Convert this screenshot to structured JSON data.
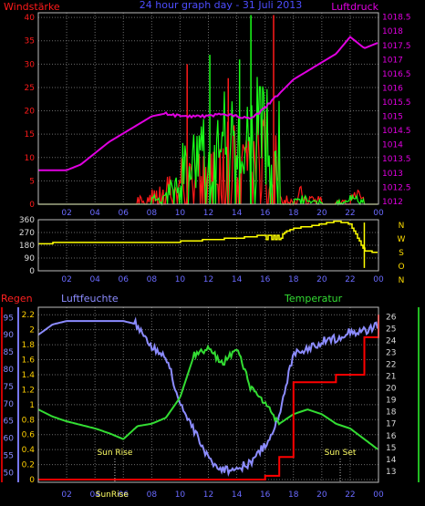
{
  "title": "24 hour graph day - 31 Juli 2013",
  "colors": {
    "background": "#000000",
    "wind": "#ff1a1a",
    "gust": "#1aff1a",
    "pressure": "#e000e0",
    "direction": "#ffff00",
    "rain": "#ff0000",
    "humidity": "#8c8cff",
    "temperature": "#33dd33",
    "blue_text": "#4d4dff",
    "time_text": "#6a6aff"
  },
  "chart_data": [
    {
      "type": "line",
      "name": "wind-pressure",
      "title": "24 hour graph day - 31 Juli 2013",
      "ylabel_left": "Windstärke",
      "ylabel_right": "Luftdruck",
      "x_ticks": [
        "02",
        "04",
        "06",
        "08",
        "10",
        "12",
        "14",
        "16",
        "18",
        "20",
        "22",
        "00"
      ],
      "y_left_ticks": [
        "0",
        "5",
        "10",
        "15",
        "20",
        "25",
        "30",
        "35",
        "40"
      ],
      "y_right_ticks": [
        "1012",
        "1012.5",
        "1013",
        "1013.5",
        "1014",
        "1014.5",
        "1015",
        "1015.5",
        "1016",
        "1016.5",
        "1017",
        "1017.5",
        "1018",
        "1018.5"
      ],
      "ylim_left": [
        0,
        41
      ],
      "ylim_right": [
        1011.9,
        1018.65
      ],
      "x_hours": [
        0,
        1,
        2,
        3,
        4,
        5,
        6,
        7,
        8,
        9,
        10,
        11,
        12,
        13,
        14,
        15,
        16,
        17,
        18,
        19,
        20,
        21,
        22,
        23,
        24
      ],
      "pressure": [
        1013.1,
        1013.1,
        1013.1,
        1013.3,
        1013.7,
        1014.1,
        1014.4,
        1014.7,
        1015.0,
        1015.1,
        1015.0,
        1015.0,
        1015.0,
        1015.1,
        1015.0,
        1014.9,
        1015.3,
        1015.8,
        1016.3,
        1016.6,
        1016.9,
        1017.2,
        1017.8,
        1017.4,
        1017.6
      ],
      "series": [
        {
          "name": "gust",
          "max_level": [
            0,
            0,
            0,
            0,
            0,
            0,
            0,
            0,
            2,
            6,
            15,
            20,
            22,
            25,
            22,
            30,
            25,
            0,
            2,
            1,
            0,
            1,
            2,
            0
          ]
        },
        {
          "name": "wind",
          "max_level": [
            0,
            0,
            0,
            0,
            0,
            0,
            0,
            2,
            4,
            6,
            10,
            12,
            14,
            18,
            14,
            20,
            16,
            2,
            4,
            2,
            0,
            1,
            3,
            0
          ]
        }
      ]
    },
    {
      "type": "line",
      "name": "wind-direction",
      "ylabel_right": [
        "N",
        "W",
        "S",
        "O",
        "N"
      ],
      "y_ticks": [
        "0",
        "90",
        "180",
        "270",
        "360"
      ],
      "ylim": [
        0,
        360
      ],
      "x_ticks": [
        "02",
        "04",
        "06",
        "08",
        "10",
        "12",
        "14",
        "16",
        "18",
        "20",
        "22",
        "00"
      ],
      "x_hours": [
        0,
        1,
        2,
        3,
        4,
        5,
        6,
        7,
        8,
        9,
        10,
        11,
        12,
        13,
        14,
        15,
        16,
        17,
        18,
        19,
        20,
        21,
        22,
        23,
        24
      ],
      "values": [
        190,
        195,
        198,
        200,
        200,
        201,
        203,
        200,
        198,
        200,
        205,
        210,
        220,
        225,
        230,
        240,
        255,
        250,
        300,
        310,
        330,
        350,
        330,
        140,
        130
      ]
    },
    {
      "type": "line",
      "name": "rain-humidity-temperature",
      "labels": {
        "rain": "Regen",
        "humidity": "Luftfeuchte",
        "temperature": "Temperatur"
      },
      "rain_ticks": [
        "0",
        "0.2",
        "0.4",
        "0.6",
        "0.8",
        "1",
        "1.2",
        "1.4",
        "1.6",
        "1.8",
        "2",
        "2.2"
      ],
      "humidity_ticks": [
        "50",
        "55",
        "60",
        "65",
        "70",
        "75",
        "80",
        "85",
        "90",
        "95"
      ],
      "temperature_ticks": [
        "13",
        "14",
        "15",
        "16",
        "17",
        "18",
        "19",
        "20",
        "21",
        "22",
        "23",
        "24",
        "25",
        "26"
      ],
      "x_ticks": [
        "02",
        "04",
        "06",
        "08",
        "10",
        "12",
        "14",
        "16",
        "18",
        "20",
        "22",
        "00"
      ],
      "annotations": [
        "Sun Rise",
        "Sun Set",
        "SunRise"
      ],
      "x_hours": [
        0,
        1,
        2,
        3,
        4,
        5,
        6,
        7,
        8,
        9,
        10,
        11,
        12,
        13,
        14,
        15,
        16,
        17,
        18,
        19,
        20,
        21,
        22,
        23,
        24
      ],
      "humidity": [
        90,
        93,
        94,
        94,
        94,
        94,
        94,
        93,
        86,
        84,
        70,
        62,
        54,
        51,
        51,
        53,
        58,
        66,
        85,
        86,
        88,
        89,
        91,
        91,
        93
      ],
      "temperature": [
        18.2,
        17.6,
        17.2,
        16.9,
        16.6,
        16.2,
        15.7,
        16.8,
        17.0,
        17.5,
        19.2,
        22.8,
        23.3,
        22.1,
        23.3,
        20.0,
        18.6,
        17.0,
        17.8,
        18.2,
        17.8,
        17.0,
        16.6,
        15.7,
        14.8
      ],
      "rain": [
        0,
        0,
        0,
        0,
        0,
        0,
        0,
        0,
        0,
        0,
        0,
        0,
        0,
        0,
        0,
        0,
        0.05,
        0.3,
        1.3,
        1.3,
        1.3,
        1.4,
        1.4,
        1.9,
        2.2
      ]
    }
  ]
}
